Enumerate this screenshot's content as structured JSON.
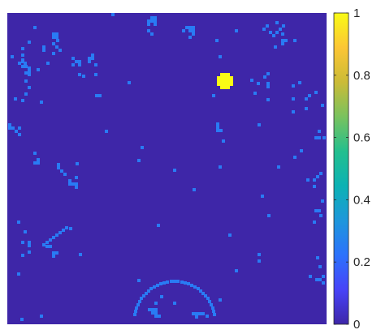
{
  "chart_data": {
    "type": "heatmap",
    "title": "",
    "xlabel": "",
    "ylabel": "",
    "grid": false,
    "colormap": "parula",
    "background_value": 0.0,
    "colorbar": {
      "limits": [
        0,
        1
      ],
      "ticks": [
        {
          "value": 0,
          "label": "0"
        },
        {
          "value": 0.2,
          "label": "0.2"
        },
        {
          "value": 0.4,
          "label": "0.4"
        },
        {
          "value": 0.6,
          "label": "0.6"
        },
        {
          "value": 0.8,
          "label": "0.8"
        },
        {
          "value": 1,
          "label": "1"
        }
      ],
      "colors": [
        "#3e26a8",
        "#4743f8",
        "#2c72fc",
        "#1e97db",
        "#0cb2b4",
        "#23bf8e",
        "#79c25e",
        "#cbbb37",
        "#fcc635",
        "#f9fb15"
      ]
    },
    "features": [
      {
        "label": "bright blob",
        "value": 1.0
      },
      {
        "label": "scattered speckles",
        "value": 0.25
      },
      {
        "label": "lower arc",
        "value": 0.25
      }
    ]
  }
}
